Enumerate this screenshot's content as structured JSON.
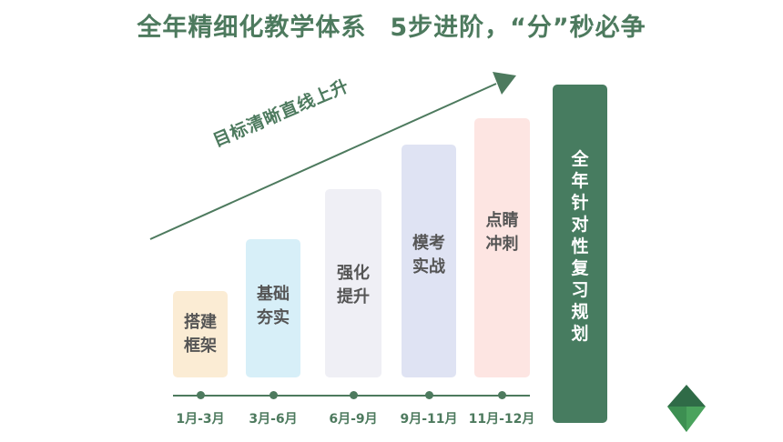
{
  "title": {
    "main": "全年精细化教学体系",
    "sub": "5步进阶，“分”秒必争"
  },
  "arrow": {
    "label": "目标清晰直线上升"
  },
  "steps": [
    {
      "label": "搭建框架",
      "period": "1月-3月",
      "color": "#fbecd4"
    },
    {
      "label": "基础夯实",
      "period": "3月-6月",
      "color": "#d7eff8"
    },
    {
      "label": "强化提升",
      "period": "6月-9月",
      "color": "#efeff5"
    },
    {
      "label": "模考实战",
      "period": "9月-11月",
      "color": "#dfe3f3"
    },
    {
      "label": "点睛冲刺",
      "period": "11月-12月",
      "color": "#fde5e2"
    }
  ],
  "final": {
    "label": "全年针对性复习规划",
    "color": "#477c60"
  },
  "accent_color": "#4d7a5e",
  "logo": {
    "icon": "triangle-logo-icon"
  }
}
